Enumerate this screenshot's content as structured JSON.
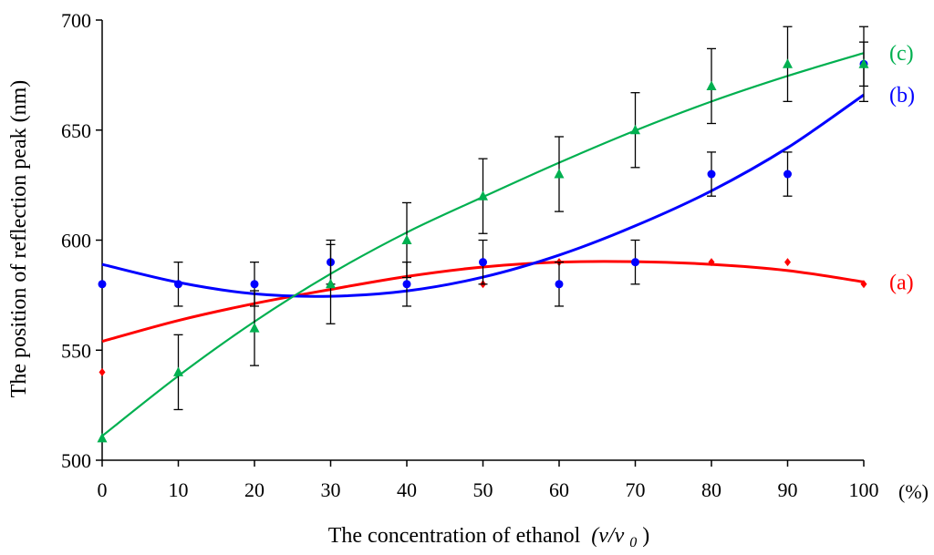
{
  "chart_data": {
    "type": "scatter",
    "xlabel": "The concentration of ethanol",
    "xlabel_italic": "(v/v",
    "xlabel_sub": "0",
    "xlabel_close": ")",
    "x_unit": "(%)",
    "ylabel": "The position of reflection peak (nm)",
    "xlim": [
      0,
      100
    ],
    "ylim": [
      500,
      700
    ],
    "x_ticks": [
      0,
      10,
      20,
      30,
      40,
      50,
      60,
      70,
      80,
      90,
      100
    ],
    "y_ticks": [
      500,
      550,
      600,
      650,
      700
    ],
    "x": [
      0,
      10,
      20,
      30,
      40,
      50,
      60,
      70,
      80,
      90,
      100
    ],
    "series": [
      {
        "name": "(a)",
        "color": "#ff0000",
        "marker": "diamond",
        "values": [
          540,
          580,
          580,
          580,
          580,
          580,
          590,
          590,
          590,
          590,
          580
        ],
        "errors": [
          0,
          0,
          0,
          0,
          0,
          0,
          0,
          0,
          0,
          0,
          0
        ],
        "fit": [
          554,
          563.5,
          571.2,
          577.6,
          583.5,
          587.8,
          590.0,
          590.2,
          589.0,
          586.2,
          581
        ]
      },
      {
        "name": "(b)",
        "color": "#0000ff",
        "marker": "circle",
        "values": [
          580,
          580,
          580,
          590,
          580,
          590,
          580,
          590,
          630,
          630,
          680
        ],
        "errors": [
          0,
          10,
          10,
          10,
          10,
          10,
          10,
          10,
          10,
          10,
          10
        ],
        "fit": [
          589,
          580.8,
          575.6,
          574.5,
          576.9,
          583.2,
          593.2,
          606.5,
          622.4,
          642.0,
          666
        ]
      },
      {
        "name": "(c)",
        "color": "#00b050",
        "marker": "triangle",
        "values": [
          510,
          540,
          560,
          580,
          600,
          620,
          630,
          650,
          670,
          680,
          680
        ],
        "errors": [
          0,
          17,
          17,
          18,
          17,
          17,
          17,
          17,
          17,
          17,
          17
        ],
        "fit": [
          511,
          538.3,
          563.0,
          584.7,
          603.5,
          619.6,
          635.2,
          649.8,
          663.0,
          674.6,
          685
        ]
      }
    ]
  }
}
